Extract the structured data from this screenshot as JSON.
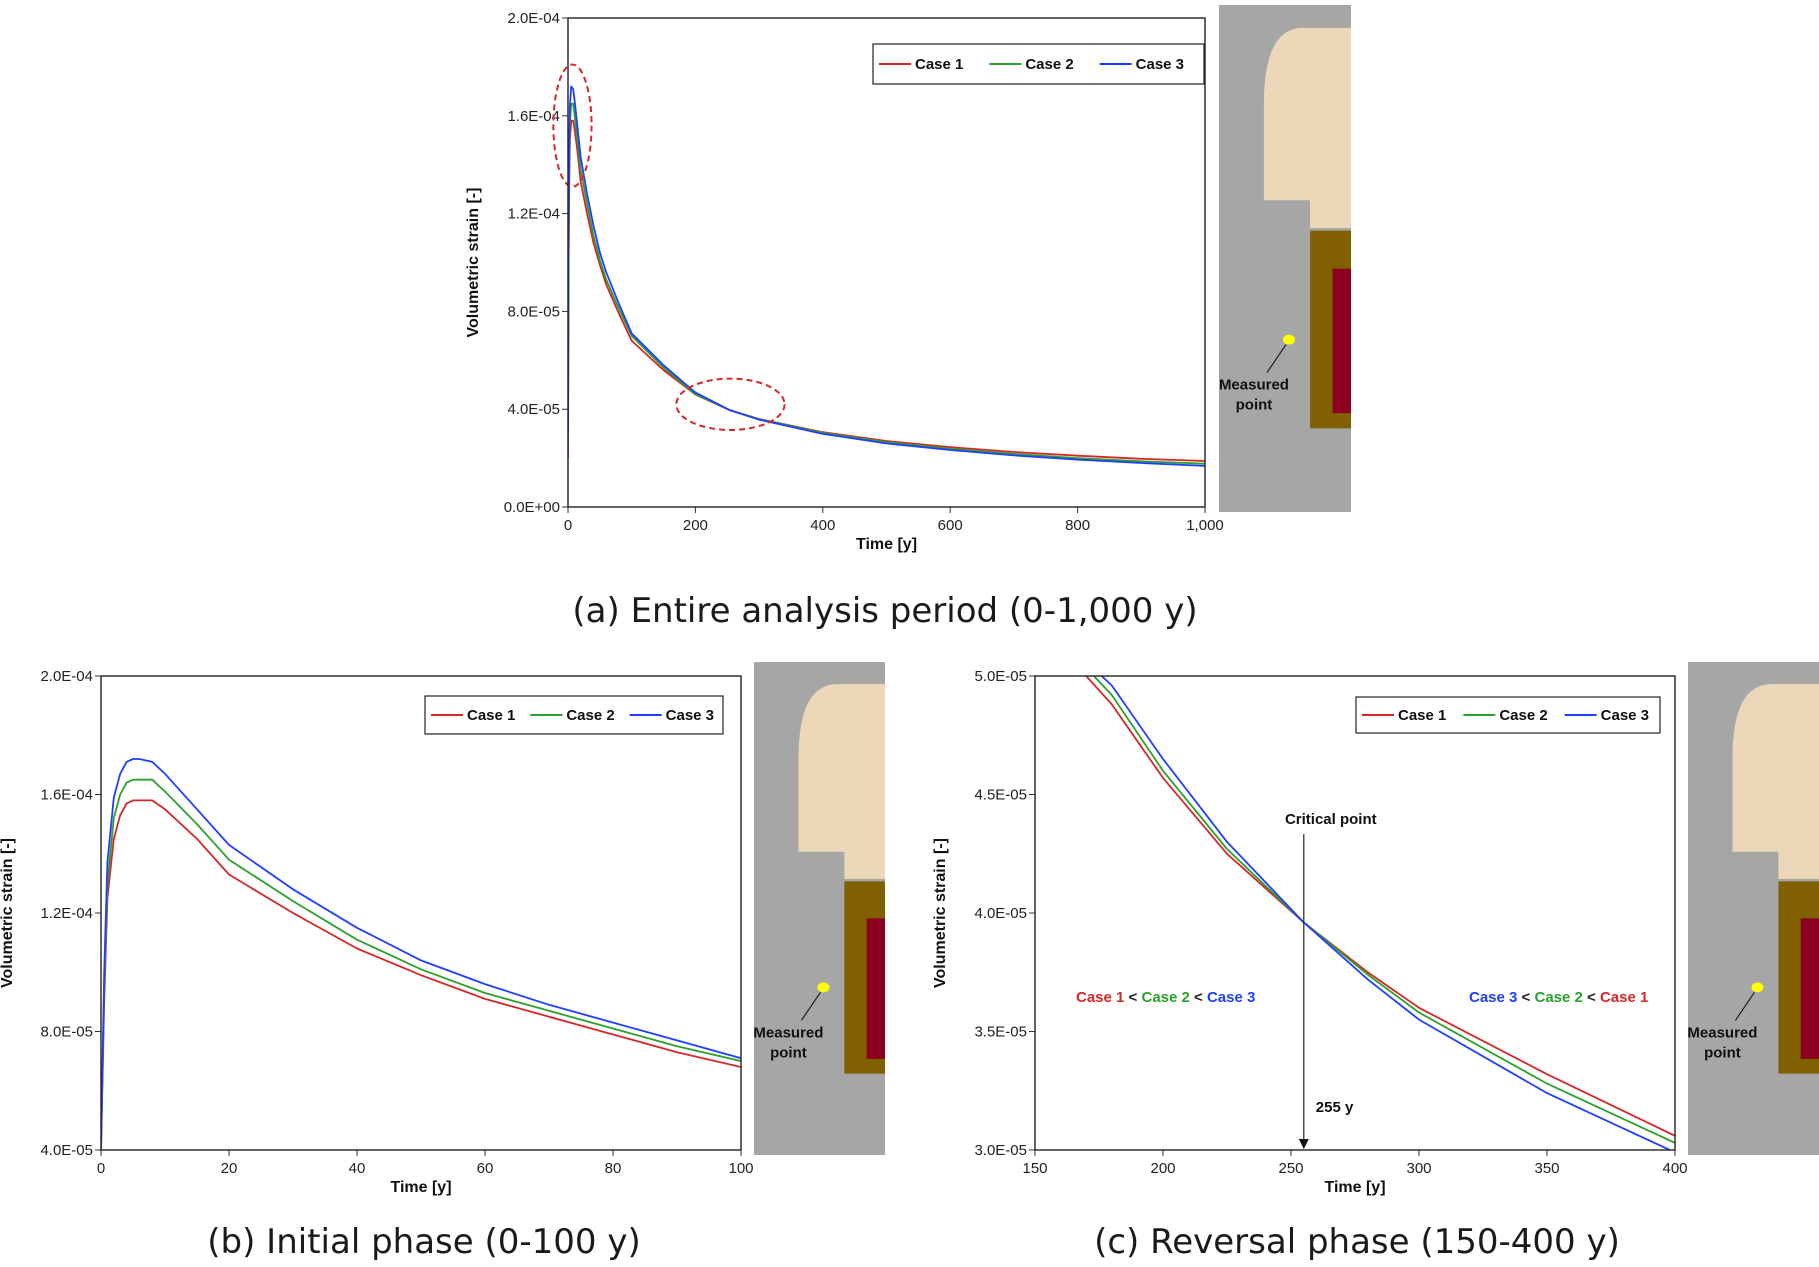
{
  "colors": {
    "case1": "#d62728",
    "case2": "#2ca02c",
    "case3": "#1f3fff",
    "highlight": "#d62728",
    "rock": "#a6a6a6",
    "buffer": "#ecd8b8",
    "bentonite": "#806000",
    "canister": "#8b0020",
    "point": "#ffff00"
  },
  "schematic": {
    "label_line1": "Measured",
    "label_line2": "point"
  },
  "chart_data": [
    {
      "id": "a",
      "type": "line",
      "caption": "(a) Entire analysis period (0-1,000 y)",
      "xlabel": "Time [y]",
      "ylabel": "Volumetric strain [-]",
      "xlim": [
        0,
        1000
      ],
      "ylim": [
        0,
        0.0002
      ],
      "xticks": [
        0,
        200,
        400,
        600,
        800,
        1000
      ],
      "xtick_labels": [
        "0",
        "200",
        "400",
        "600",
        "800",
        "1,000"
      ],
      "yticks": [
        0,
        4e-05,
        8e-05,
        0.00012,
        0.00016,
        0.0002
      ],
      "ytick_labels": [
        "0.0E+00",
        "4.0E-05",
        "8.0E-05",
        "1.2E-04",
        "1.6E-04",
        "2.0E-04"
      ],
      "legend": [
        "Case 1",
        "Case 2",
        "Case 3"
      ],
      "legend_position": "top-right",
      "series": [
        {
          "name": "Case 1",
          "x": [
            0,
            1,
            2,
            3,
            5,
            8,
            10,
            15,
            20,
            30,
            40,
            50,
            60,
            80,
            100,
            150,
            200,
            255,
            300,
            400,
            500,
            600,
            700,
            800,
            900,
            1000
          ],
          "y": [
            2e-05,
            0.0001,
            0.000135,
            0.00015,
            0.000158,
            0.000158,
            0.000155,
            0.000145,
            0.000133,
            0.00012,
            0.000108,
            9.9e-05,
            9.1e-05,
            7.9e-05,
            6.8e-05,
            5.6e-05,
            4.6e-05,
            3.95e-05,
            3.6e-05,
            3.06e-05,
            2.7e-05,
            2.45e-05,
            2.25e-05,
            2.1e-05,
            1.97e-05,
            1.88e-05
          ]
        },
        {
          "name": "Case 2",
          "x": [
            0,
            1,
            2,
            3,
            5,
            8,
            10,
            15,
            20,
            30,
            40,
            50,
            60,
            80,
            100,
            150,
            200,
            255,
            300,
            400,
            500,
            600,
            700,
            800,
            900,
            1000
          ],
          "y": [
            2.5e-05,
            0.000108,
            0.000142,
            0.000157,
            0.000165,
            0.000165,
            0.000161,
            0.00015,
            0.000138,
            0.000124,
            0.000111,
            0.000101,
            9.3e-05,
            8.1e-05,
            7e-05,
            5.7e-05,
            4.62e-05,
            3.95e-05,
            3.59e-05,
            3.03e-05,
            2.65e-05,
            2.38e-05,
            2.17e-05,
            2e-05,
            1.87e-05,
            1.77e-05
          ]
        },
        {
          "name": "Case 3",
          "x": [
            0,
            1,
            2,
            3,
            5,
            8,
            10,
            15,
            20,
            30,
            40,
            50,
            60,
            80,
            100,
            150,
            200,
            255,
            300,
            400,
            500,
            600,
            700,
            800,
            900,
            1000
          ],
          "y": [
            3e-05,
            0.000115,
            0.00015,
            0.000164,
            0.000172,
            0.000171,
            0.000167,
            0.000155,
            0.000143,
            0.000128,
            0.000115,
            0.000104,
            9.6e-05,
            8.3e-05,
            7.1e-05,
            5.8e-05,
            4.68e-05,
            3.95e-05,
            3.57e-05,
            2.99e-05,
            2.6e-05,
            2.33e-05,
            2.11e-05,
            1.94e-05,
            1.8e-05,
            1.68e-05
          ]
        }
      ],
      "annotations": [
        {
          "type": "ellipse",
          "cx": 7,
          "cy": 0.000156,
          "rx": 30,
          "ry": 2.5e-05
        },
        {
          "type": "ellipse",
          "cx": 255,
          "cy": 4.2e-05,
          "rx": 85,
          "ry": 1.05e-05
        }
      ]
    },
    {
      "id": "b",
      "type": "line",
      "caption": "(b) Initial phase (0-100 y)",
      "xlabel": "Time [y]",
      "ylabel": "Volumetric strain [-]",
      "xlim": [
        0,
        100
      ],
      "ylim": [
        4e-05,
        0.0002
      ],
      "xticks": [
        0,
        20,
        40,
        60,
        80,
        100
      ],
      "xtick_labels": [
        "0",
        "20",
        "40",
        "60",
        "80",
        "100"
      ],
      "yticks": [
        4e-05,
        8e-05,
        0.00012,
        0.00016,
        0.0002
      ],
      "ytick_labels": [
        "4.0E-05",
        "8.0E-05",
        "1.2E-04",
        "1.6E-04",
        "2.0E-04"
      ],
      "legend": [
        "Case 1",
        "Case 2",
        "Case 3"
      ],
      "legend_position": "top-right",
      "series": [
        {
          "name": "Case 1",
          "x": [
            0,
            0.5,
            1,
            2,
            3,
            4,
            5,
            6,
            8,
            10,
            15,
            20,
            30,
            40,
            50,
            60,
            70,
            80,
            90,
            100
          ],
          "y": [
            4e-05,
            9e-05,
            0.000125,
            0.000145,
            0.000153,
            0.000157,
            0.000158,
            0.000158,
            0.000158,
            0.000155,
            0.000145,
            0.000133,
            0.00012,
            0.000108,
            9.9e-05,
            9.1e-05,
            8.5e-05,
            7.9e-05,
            7.3e-05,
            6.8e-05
          ]
        },
        {
          "name": "Case 2",
          "x": [
            0,
            0.5,
            1,
            2,
            3,
            4,
            5,
            6,
            8,
            10,
            15,
            20,
            30,
            40,
            50,
            60,
            70,
            80,
            90,
            100
          ],
          "y": [
            4e-05,
            9.5e-05,
            0.00013,
            0.000152,
            0.00016,
            0.000164,
            0.000165,
            0.000165,
            0.000165,
            0.000161,
            0.00015,
            0.000138,
            0.000124,
            0.000111,
            0.000101,
            9.3e-05,
            8.7e-05,
            8.1e-05,
            7.5e-05,
            7e-05
          ]
        },
        {
          "name": "Case 3",
          "x": [
            0,
            0.5,
            1,
            2,
            3,
            4,
            5,
            6,
            8,
            10,
            15,
            20,
            30,
            40,
            50,
            60,
            70,
            80,
            90,
            100
          ],
          "y": [
            4e-05,
            0.0001,
            0.000137,
            0.000159,
            0.000167,
            0.000171,
            0.000172,
            0.000172,
            0.000171,
            0.000167,
            0.000155,
            0.000143,
            0.000128,
            0.000115,
            0.000104,
            9.6e-05,
            8.9e-05,
            8.3e-05,
            7.7e-05,
            7.1e-05
          ]
        }
      ]
    },
    {
      "id": "c",
      "type": "line",
      "caption": "(c) Reversal phase (150-400 y)",
      "xlabel": "Time [y]",
      "ylabel": "Volumetric strain [-]",
      "xlim": [
        150,
        400
      ],
      "ylim": [
        3e-05,
        5e-05
      ],
      "xticks": [
        150,
        200,
        250,
        300,
        350,
        400
      ],
      "xtick_labels": [
        "150",
        "200",
        "250",
        "300",
        "350",
        "400"
      ],
      "yticks": [
        3e-05,
        3.5e-05,
        4e-05,
        4.5e-05,
        5e-05
      ],
      "ytick_labels": [
        "3.0E-05",
        "3.5E-05",
        "4.0E-05",
        "4.5E-05",
        "5.0E-05"
      ],
      "legend": [
        "Case 1",
        "Case 2",
        "Case 3"
      ],
      "legend_position": "top-right",
      "series": [
        {
          "name": "Case 1",
          "x": [
            170,
            180,
            200,
            225,
            255,
            280,
            300,
            350,
            400
          ],
          "y": [
            5e-05,
            4.88e-05,
            4.57e-05,
            4.25e-05,
            3.96e-05,
            3.75e-05,
            3.6e-05,
            3.32e-05,
            3.06e-05
          ]
        },
        {
          "name": "Case 2",
          "x": [
            173,
            180,
            200,
            225,
            255,
            280,
            300,
            350,
            400
          ],
          "y": [
            5e-05,
            4.92e-05,
            4.6e-05,
            4.27e-05,
            3.96e-05,
            3.74e-05,
            3.58e-05,
            3.28e-05,
            3.03e-05
          ]
        },
        {
          "name": "Case 3",
          "x": [
            176,
            180,
            200,
            225,
            255,
            280,
            300,
            350,
            400
          ],
          "y": [
            5e-05,
            4.96e-05,
            4.65e-05,
            4.3e-05,
            3.96e-05,
            3.72e-05,
            3.55e-05,
            3.24e-05,
            2.99e-05
          ]
        }
      ],
      "critical_point": {
        "label": "Critical point",
        "x": 255,
        "value_label": "255 y"
      },
      "ordering_left": [
        {
          "text": "Case 1",
          "color": "case1"
        },
        {
          "text": " < ",
          "color": "dark"
        },
        {
          "text": "Case 2",
          "color": "case2"
        },
        {
          "text": " < ",
          "color": "dark"
        },
        {
          "text": "Case 3",
          "color": "case3"
        }
      ],
      "ordering_right": [
        {
          "text": "Case 3",
          "color": "case3"
        },
        {
          "text": " < ",
          "color": "dark"
        },
        {
          "text": "Case 2",
          "color": "case2"
        },
        {
          "text": " < ",
          "color": "dark"
        },
        {
          "text": "Case 1",
          "color": "case1"
        }
      ]
    }
  ]
}
